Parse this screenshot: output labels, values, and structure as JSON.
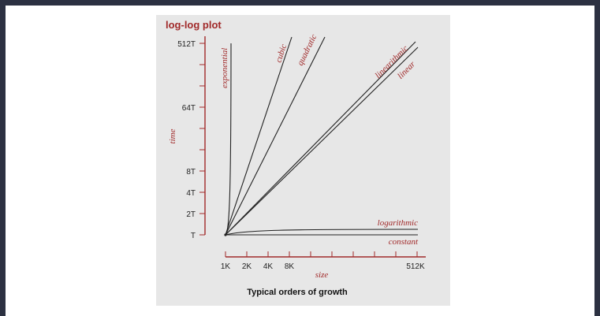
{
  "chart_data": {
    "type": "line",
    "title": "log-log plot",
    "xlabel": "size",
    "ylabel": "time",
    "caption": "Typical orders of growth",
    "x_ticks": [
      "1K",
      "2K",
      "4K",
      "8K",
      "512K"
    ],
    "y_ticks": [
      "T",
      "2T",
      "4T",
      "8T",
      "64T",
      "512T"
    ],
    "x_scale": "log2",
    "y_scale": "log2",
    "series": [
      {
        "name": "constant",
        "order": "1"
      },
      {
        "name": "logarithmic",
        "order": "log N"
      },
      {
        "name": "linear",
        "order": "N"
      },
      {
        "name": "linearithmic",
        "order": "N log N"
      },
      {
        "name": "quadratic",
        "order": "N^2"
      },
      {
        "name": "cubic",
        "order": "N^3"
      },
      {
        "name": "exponential",
        "order": "2^N"
      }
    ],
    "colors": {
      "accent": "#a12a2a",
      "curve": "#222222",
      "background": "#e7e7e7",
      "frame": "#2c3142"
    }
  }
}
